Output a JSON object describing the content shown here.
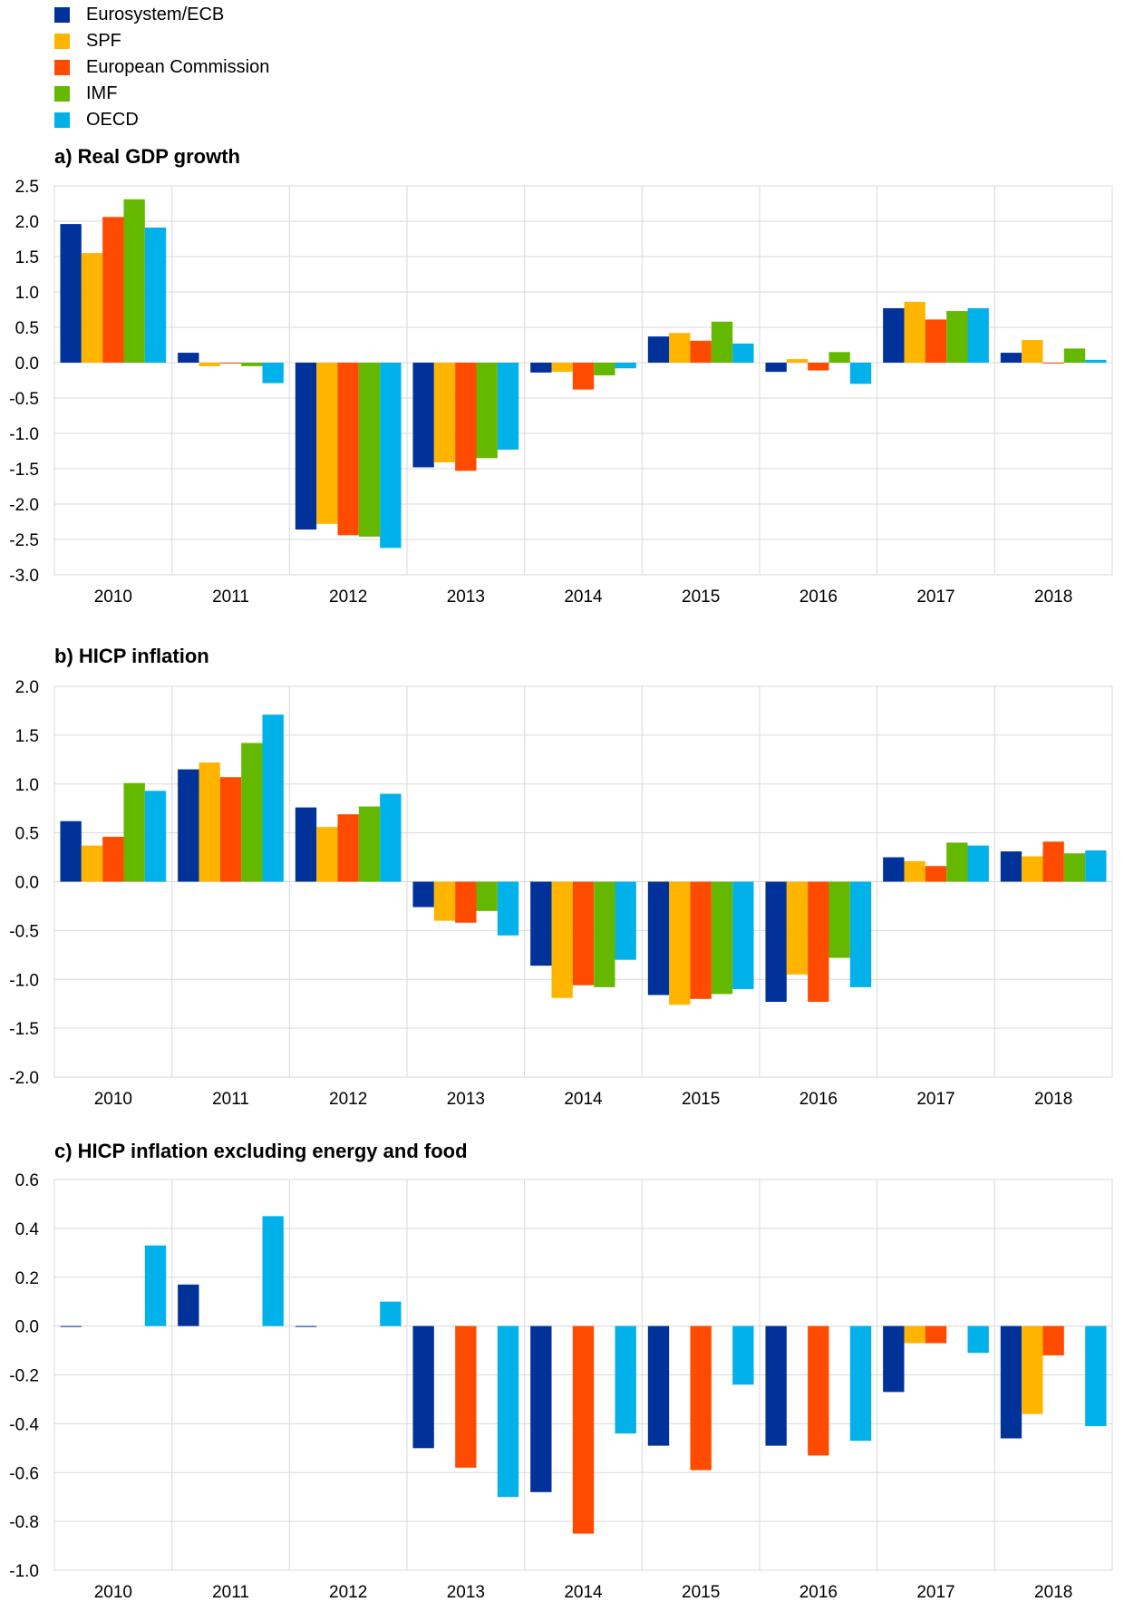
{
  "legend": [
    {
      "name": "Eurosystem/ECB",
      "color": "#003299"
    },
    {
      "name": "SPF",
      "color": "#FFB400"
    },
    {
      "name": "European Commission",
      "color": "#FF4B00"
    },
    {
      "name": "IMF",
      "color": "#65B800"
    },
    {
      "name": "OECD",
      "color": "#00B1EA"
    }
  ],
  "chart_data": [
    {
      "type": "bar",
      "title": "a) Real GDP growth",
      "categories": [
        "2010",
        "2011",
        "2012",
        "2013",
        "2014",
        "2015",
        "2016",
        "2017",
        "2018"
      ],
      "ylim": [
        -3.0,
        2.5
      ],
      "yticks": [
        "2.5",
        "2.0",
        "1.5",
        "1.0",
        "0.5",
        "0.0",
        "-0.5",
        "-1.0",
        "-1.5",
        "-2.0",
        "-2.5",
        "-3.0"
      ],
      "grid": true,
      "legend_position": "top-left",
      "series": [
        {
          "name": "Eurosystem/ECB",
          "values": [
            1.96,
            0.14,
            -2.36,
            -1.48,
            -0.14,
            0.37,
            -0.13,
            0.77,
            0.14
          ]
        },
        {
          "name": "SPF",
          "values": [
            1.55,
            -0.05,
            -2.28,
            -1.41,
            -0.13,
            0.42,
            0.05,
            0.86,
            0.32
          ]
        },
        {
          "name": "European Commission",
          "values": [
            2.06,
            0.0,
            -2.44,
            -1.53,
            -0.38,
            0.31,
            -0.11,
            0.61,
            0.0
          ]
        },
        {
          "name": "IMF",
          "values": [
            2.31,
            -0.05,
            -2.46,
            -1.35,
            -0.18,
            0.58,
            0.15,
            0.73,
            0.2
          ]
        },
        {
          "name": "OECD",
          "values": [
            1.91,
            -0.29,
            -2.62,
            -1.23,
            -0.08,
            0.27,
            -0.3,
            0.77,
            0.04
          ]
        }
      ]
    },
    {
      "type": "bar",
      "title": "b) HICP inflation",
      "categories": [
        "2010",
        "2011",
        "2012",
        "2013",
        "2014",
        "2015",
        "2016",
        "2017",
        "2018"
      ],
      "ylim": [
        -2.0,
        2.0
      ],
      "yticks": [
        "2.0",
        "1.5",
        "1.0",
        "0.5",
        "0.0",
        "-0.5",
        "-1.0",
        "-1.5",
        "-2.0"
      ],
      "grid": true,
      "series": [
        {
          "name": "Eurosystem/ECB",
          "values": [
            0.62,
            1.15,
            0.76,
            -0.26,
            -0.86,
            -1.16,
            -1.23,
            0.25,
            0.31
          ]
        },
        {
          "name": "SPF",
          "values": [
            0.37,
            1.22,
            0.56,
            -0.4,
            -1.19,
            -1.26,
            -0.95,
            0.21,
            0.26
          ]
        },
        {
          "name": "European Commission",
          "values": [
            0.46,
            1.07,
            0.69,
            -0.42,
            -1.06,
            -1.2,
            -1.23,
            0.16,
            0.41
          ]
        },
        {
          "name": "IMF",
          "values": [
            1.01,
            1.42,
            0.77,
            -0.3,
            -1.08,
            -1.15,
            -0.78,
            0.4,
            0.29
          ]
        },
        {
          "name": "OECD",
          "values": [
            0.93,
            1.71,
            0.9,
            -0.55,
            -0.8,
            -1.1,
            -1.08,
            0.37,
            0.32
          ]
        }
      ]
    },
    {
      "type": "bar",
      "title": "c) HICP inflation excluding energy and food",
      "categories": [
        "2010",
        "2011",
        "2012",
        "2013",
        "2014",
        "2015",
        "2016",
        "2017",
        "2018"
      ],
      "ylim": [
        -1.0,
        0.6
      ],
      "yticks": [
        "0.6",
        "0.4",
        "0.2",
        "0.0",
        "-0.2",
        "-0.4",
        "-0.6",
        "-0.8",
        "-1.0"
      ],
      "grid": true,
      "series": [
        {
          "name": "Eurosystem/ECB",
          "values": [
            0.0,
            0.17,
            0.0,
            -0.5,
            -0.68,
            -0.49,
            -0.49,
            -0.27,
            -0.46
          ]
        },
        {
          "name": "SPF",
          "values": [
            null,
            null,
            null,
            null,
            null,
            null,
            null,
            -0.07,
            -0.36
          ]
        },
        {
          "name": "European Commission",
          "values": [
            null,
            null,
            null,
            -0.58,
            -0.85,
            -0.59,
            -0.53,
            -0.07,
            -0.12
          ]
        },
        {
          "name": "IMF",
          "values": [
            null,
            null,
            null,
            null,
            null,
            null,
            null,
            null,
            null
          ]
        },
        {
          "name": "OECD",
          "values": [
            0.33,
            0.45,
            0.1,
            -0.7,
            -0.44,
            -0.24,
            -0.47,
            -0.11,
            -0.41
          ]
        }
      ]
    }
  ]
}
